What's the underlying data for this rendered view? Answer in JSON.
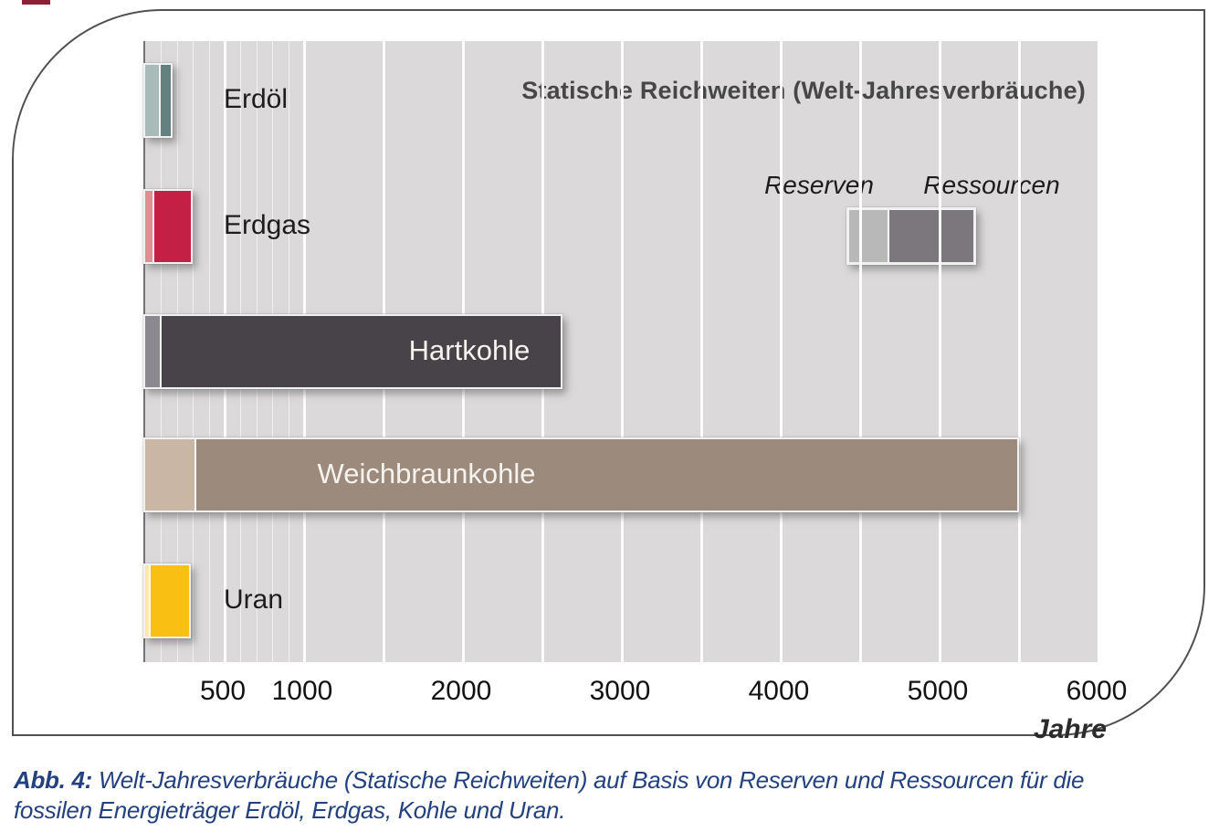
{
  "figure": {
    "title": "Statische Reichweiten (Welt-Jahresverbräuche)",
    "axis_unit_label": "Jahre",
    "legend": {
      "reserven_label": "Reserven",
      "ressourcen_label": "Ressourcen",
      "reserven_color": "#b9b8b9",
      "ressourcen_color": "#7b777c"
    },
    "colors": {
      "plot_background": "#dbd9da",
      "panel_border": "#515153",
      "caption_blue": "#24417f",
      "title_gray": "#474747"
    }
  },
  "caption": {
    "prefix": "Abb. 4:",
    "line1_rest": " Welt-Jahresverbräuche (Statische Reichweiten) auf Basis von Reserven und Ressourcen für die",
    "line2": "fossilen Energieträger Erdöl, Erdgas, Kohle und Uran."
  },
  "chart_data": {
    "type": "bar",
    "orientation": "horizontal",
    "title": "Statische Reichweiten (Welt-Jahresverbräuche)",
    "xlabel": "Jahre",
    "xlim": [
      0,
      6000
    ],
    "x_ticks": [
      500,
      1000,
      2000,
      3000,
      4000,
      5000,
      6000
    ],
    "gridlines": {
      "minor_every": 100,
      "minor_max": 1000,
      "major_every": 500
    },
    "series_names": [
      "Reserven",
      "Ressourcen"
    ],
    "legend_position": "upper right inside plot",
    "rows": [
      {
        "category": "Erdöl",
        "reserven_years": 100,
        "ressourcen_total_years": 160,
        "reserven_color": "#a9bbb8",
        "ressourcen_color": "#64807f",
        "label_inside": false
      },
      {
        "category": "Erdgas",
        "reserven_years": 60,
        "ressourcen_total_years": 290,
        "reserven_color": "#e18d92",
        "ressourcen_color": "#c42045",
        "label_inside": false
      },
      {
        "category": "Hartkohle",
        "reserven_years": 105,
        "ressourcen_total_years": 2615,
        "reserven_color": "#8b8890",
        "ressourcen_color": "#484349",
        "label_inside": true,
        "label_center_year": 2040
      },
      {
        "category": "Weichbraunkohle",
        "reserven_years": 320,
        "ressourcen_total_years": 5490,
        "reserven_color": "#c9b6a5",
        "ressourcen_color": "#9c8a7d",
        "label_inside": true,
        "label_center_year": 1770
      },
      {
        "category": "Uran",
        "reserven_years": 35,
        "ressourcen_total_years": 275,
        "reserven_color": "#fbe8af",
        "ressourcen_color": "#f9c013",
        "label_inside": false
      }
    ]
  }
}
